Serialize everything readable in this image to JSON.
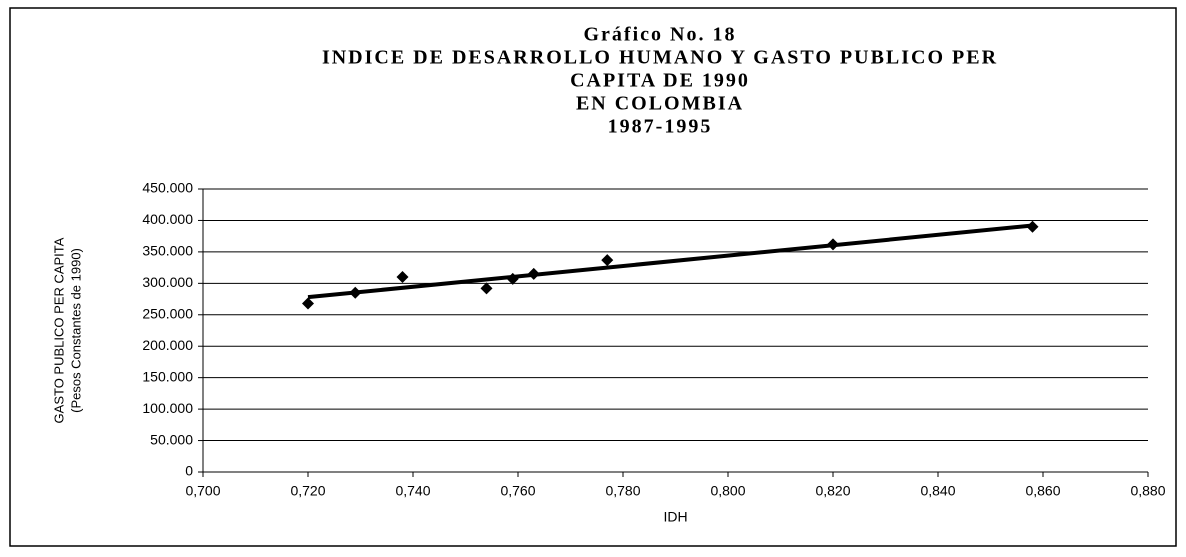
{
  "chart_data": {
    "type": "scatter",
    "title": [
      "Gráfico No. 18",
      "INDICE DE DESARROLLO HUMANO Y GASTO PUBLICO PER",
      "CAPITA DE 1990",
      "EN COLOMBIA",
      "1987-1995"
    ],
    "xlabel": "IDH",
    "ylabel": [
      "GASTO PUBLICO PER CAPITA",
      "(Pesos Constantes de 1990)"
    ],
    "series": [
      {
        "color": "#000000",
        "x": [
          0.72,
          0.729,
          0.738,
          0.754,
          0.759,
          0.763,
          0.777,
          0.82,
          0.858
        ],
        "values": [
          268,
          285,
          310,
          292,
          307,
          315,
          337,
          362,
          390
        ]
      }
    ],
    "trendline": {
      "color": "#000000",
      "x": [
        0.72,
        0.858
      ],
      "values": [
        278,
        392
      ]
    },
    "xlim": [
      0.7,
      0.88
    ],
    "xticks": [
      {
        "value": 0.7,
        "label": "0,700"
      },
      {
        "value": 0.72,
        "label": "0,720"
      },
      {
        "value": 0.74,
        "label": "0,740"
      },
      {
        "value": 0.76,
        "label": "0,760"
      },
      {
        "value": 0.78,
        "label": "0,780"
      },
      {
        "value": 0.8,
        "label": "0,800"
      },
      {
        "value": 0.82,
        "label": "0,820"
      },
      {
        "value": 0.84,
        "label": "0,840"
      },
      {
        "value": 0.86,
        "label": "0,860"
      },
      {
        "value": 0.88,
        "label": "0,880"
      }
    ],
    "ylim": [
      0,
      450
    ],
    "yticks": [
      0,
      {
        "value": 50,
        "label": "50.000"
      },
      {
        "value": 100,
        "label": "100.000"
      },
      {
        "value": 150,
        "label": "150.000"
      },
      {
        "value": 200,
        "label": "200.000"
      },
      {
        "value": 250,
        "label": "250.000"
      },
      {
        "value": 300,
        "label": "300.000"
      },
      {
        "value": 350,
        "label": "350.000"
      },
      {
        "value": 400,
        "label": "400.000"
      },
      {
        "value": 450,
        "label": "450.000"
      }
    ],
    "grid": true
  }
}
